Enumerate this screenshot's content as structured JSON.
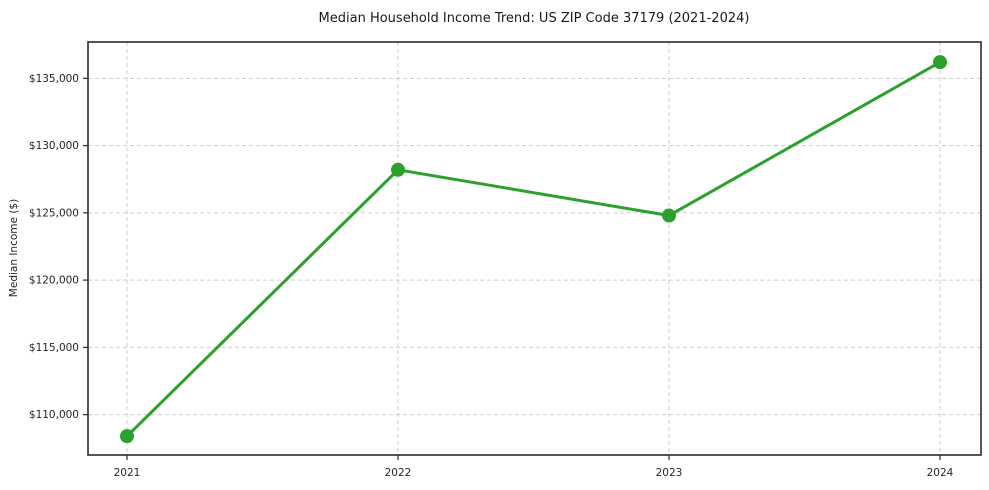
{
  "chart_data": {
    "type": "line",
    "title": "Median Household Income Trend: US ZIP Code 37179 (2021-2024)",
    "xlabel": "",
    "ylabel": "Median Income ($)",
    "categories": [
      "2021",
      "2022",
      "2023",
      "2024"
    ],
    "series": [
      {
        "name": "Median Household Income",
        "values": [
          108400,
          128200,
          124800,
          136200
        ]
      }
    ],
    "ylim": [
      107000,
      137700
    ],
    "yticks": [
      110000,
      115000,
      120000,
      125000,
      130000,
      135000
    ],
    "ytick_labels": [
      "$110,000",
      "$115,000",
      "$120,000",
      "$125,000",
      "$130,000",
      "$135,000"
    ],
    "grid": true,
    "grid_style": "dashed",
    "legend_position": "none",
    "colors": {
      "line": "#2ca02c",
      "marker": "#2ca02c",
      "grid": "#cdcdcd",
      "spine": "#2b2b2b",
      "text": "#262626",
      "background": "#ffffff"
    }
  }
}
